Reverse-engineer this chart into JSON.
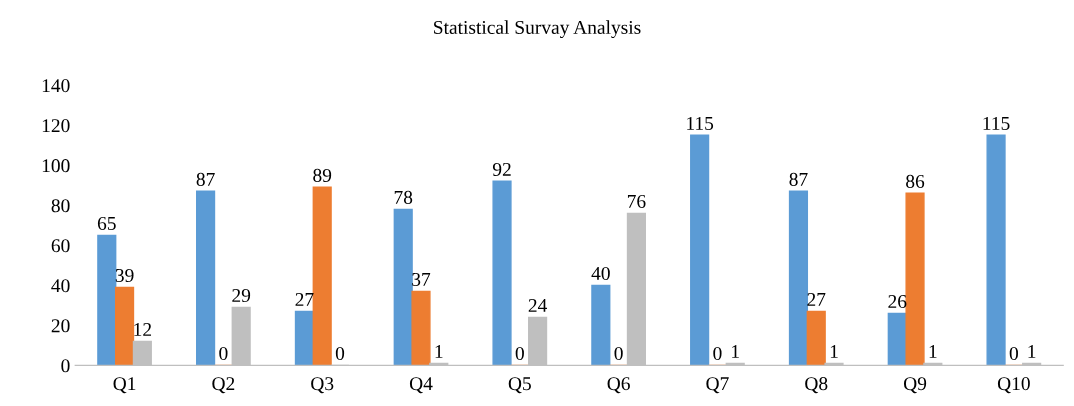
{
  "chart_data": {
    "type": "bar",
    "title": "Statistical Survay Analysis",
    "categories": [
      "Q1",
      "Q2",
      "Q3",
      "Q4",
      "Q5",
      "Q6",
      "Q7",
      "Q8",
      "Q9",
      "Q10"
    ],
    "series": [
      {
        "color": "#5b9bd5",
        "values": [
          65,
          87,
          27,
          78,
          92,
          40,
          115,
          87,
          26,
          115
        ]
      },
      {
        "color": "#ed7d31",
        "values": [
          39,
          0,
          89,
          37,
          0,
          0,
          0,
          27,
          86,
          0
        ]
      },
      {
        "color": "#bfbfbf",
        "values": [
          12,
          29,
          0,
          1,
          24,
          76,
          1,
          1,
          1,
          1
        ]
      }
    ],
    "ylim": [
      0,
      140
    ],
    "yticks": [
      0,
      20,
      40,
      60,
      80,
      100,
      120,
      140
    ],
    "grid": false,
    "legend": false,
    "data_labels": true
  }
}
